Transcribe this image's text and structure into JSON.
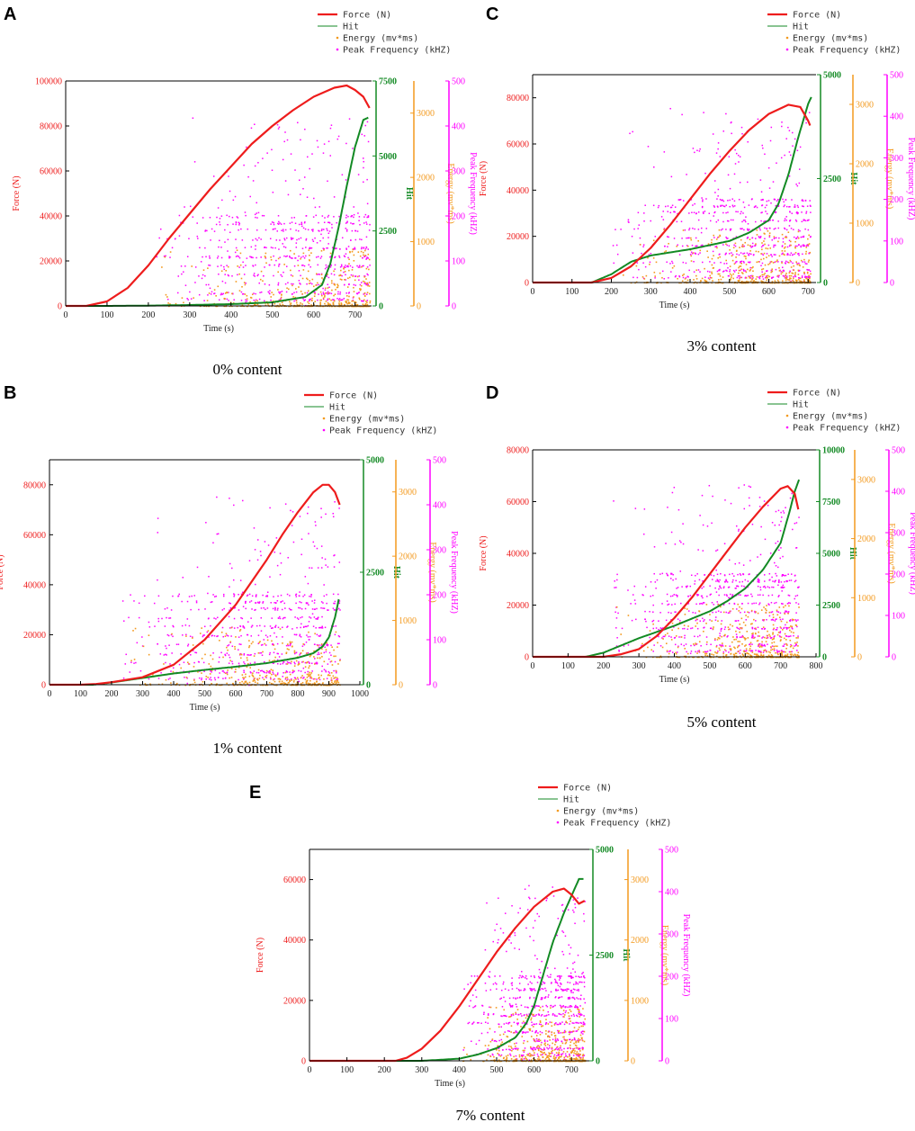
{
  "colors": {
    "force": "#ee1c1c",
    "hit": "#138a24",
    "energy": "#f39a1f",
    "peak": "#ff00ff",
    "axis": "#000000"
  },
  "legend_labels": {
    "force": "Force (N)",
    "hit": "Hit",
    "energy": "Energy (mv*ms)",
    "peak": "Peak Frequency (kHZ)"
  },
  "chart_data": [
    {
      "id": "A",
      "letter": "A",
      "caption": "0% content",
      "type": "line",
      "xlabel": "Time (s)",
      "xlim": [
        0,
        740
      ],
      "xticks": [
        0,
        100,
        200,
        300,
        400,
        500,
        600,
        700
      ],
      "force": {
        "label": "Force (N)",
        "ylim": [
          0,
          100000
        ],
        "ticks": [
          0,
          20000,
          40000,
          60000,
          80000,
          100000
        ],
        "x": [
          0,
          50,
          100,
          150,
          200,
          250,
          300,
          350,
          400,
          450,
          500,
          550,
          600,
          650,
          680,
          700,
          720,
          735
        ],
        "y": [
          0,
          0,
          2000,
          8000,
          18000,
          30000,
          41000,
          52000,
          62000,
          72000,
          80000,
          87000,
          93000,
          97000,
          98000,
          96000,
          93000,
          88000
        ]
      },
      "hit": {
        "label": "Hit",
        "ylim": [
          0,
          7500
        ],
        "ticks": [
          0,
          2500,
          5000,
          7500
        ],
        "x": [
          0,
          100,
          200,
          300,
          400,
          500,
          580,
          620,
          640,
          660,
          680,
          700,
          720,
          735
        ],
        "y": [
          0,
          0,
          10,
          30,
          60,
          120,
          300,
          700,
          1400,
          2600,
          4000,
          5300,
          6200,
          6300
        ]
      },
      "energy": {
        "label": "Energy (mv*ms)",
        "ylim": [
          0,
          3500
        ],
        "ticks": [
          0,
          1000,
          2000,
          3000
        ]
      },
      "peak": {
        "label": "Peak Frequency (kHZ)",
        "ylim": [
          0,
          500
        ],
        "ticks": [
          0,
          100,
          200,
          300,
          400,
          500
        ]
      }
    },
    {
      "id": "B",
      "letter": "B",
      "caption": "1% content",
      "type": "line",
      "xlabel": "Time (s)",
      "xlim": [
        0,
        1000
      ],
      "xticks": [
        0,
        100,
        200,
        300,
        400,
        500,
        600,
        700,
        800,
        900,
        1000
      ],
      "force": {
        "label": "Force (N)",
        "ylim": [
          0,
          90000
        ],
        "ticks": [
          0,
          20000,
          40000,
          60000,
          80000
        ],
        "x": [
          0,
          100,
          150,
          200,
          300,
          400,
          500,
          600,
          700,
          750,
          800,
          850,
          880,
          900,
          920,
          935
        ],
        "y": [
          0,
          0,
          300,
          1000,
          3000,
          8000,
          18000,
          32000,
          50000,
          60000,
          69000,
          77000,
          80000,
          80000,
          77000,
          72000
        ]
      },
      "hit": {
        "label": "Hit",
        "ylim": [
          0,
          5000
        ],
        "ticks": [
          0,
          2500,
          5000
        ],
        "x": [
          0,
          140,
          200,
          300,
          400,
          500,
          600,
          700,
          800,
          850,
          880,
          900,
          920,
          935
        ],
        "y": [
          0,
          0,
          50,
          150,
          250,
          330,
          400,
          480,
          600,
          700,
          850,
          1050,
          1500,
          2000
        ]
      },
      "energy": {
        "label": "Energy (mv*ms)",
        "ylim": [
          0,
          3500
        ],
        "ticks": [
          0,
          1000,
          2000,
          3000
        ]
      },
      "peak": {
        "label": "Peak Frequency (kHZ)",
        "ylim": [
          0,
          500
        ],
        "ticks": [
          0,
          100,
          200,
          300,
          400,
          500
        ]
      }
    },
    {
      "id": "C",
      "letter": "C",
      "caption": "3% content",
      "type": "line",
      "xlabel": "Time (s)",
      "xlim": [
        0,
        720
      ],
      "xticks": [
        0,
        100,
        200,
        300,
        400,
        500,
        600,
        700
      ],
      "force": {
        "label": "Force (N)",
        "ylim": [
          0,
          90000
        ],
        "ticks": [
          0,
          20000,
          40000,
          60000,
          80000
        ],
        "x": [
          0,
          150,
          200,
          250,
          300,
          350,
          400,
          450,
          500,
          550,
          600,
          650,
          680,
          700,
          705
        ],
        "y": [
          0,
          0,
          2000,
          7000,
          15000,
          25000,
          36000,
          47000,
          57000,
          66000,
          73000,
          77000,
          76000,
          70000,
          68000
        ]
      },
      "hit": {
        "label": "Hit",
        "ylim": [
          0,
          5000
        ],
        "ticks": [
          0,
          2500,
          5000
        ],
        "x": [
          0,
          150,
          200,
          250,
          300,
          400,
          500,
          550,
          600,
          625,
          650,
          675,
          700,
          710
        ],
        "y": [
          0,
          0,
          200,
          500,
          650,
          800,
          1000,
          1200,
          1500,
          1900,
          2600,
          3500,
          4300,
          4500
        ]
      },
      "energy": {
        "label": "Energy (mv*ms)",
        "ylim": [
          0,
          3500
        ],
        "ticks": [
          0,
          1000,
          2000,
          3000
        ]
      },
      "peak": {
        "label": "Peak Frequency (kHZ)",
        "ylim": [
          0,
          500
        ],
        "ticks": [
          0,
          100,
          200,
          300,
          400,
          500
        ]
      }
    },
    {
      "id": "D",
      "letter": "D",
      "caption": "5% content",
      "type": "line",
      "xlabel": "Time (s)",
      "xlim": [
        0,
        800
      ],
      "xticks": [
        0,
        100,
        200,
        300,
        400,
        500,
        600,
        700,
        800
      ],
      "force": {
        "label": "Force (N)",
        "ylim": [
          0,
          80000
        ],
        "ticks": [
          0,
          20000,
          40000,
          60000,
          80000
        ],
        "x": [
          0,
          200,
          250,
          300,
          350,
          400,
          450,
          500,
          550,
          600,
          650,
          700,
          720,
          740,
          750
        ],
        "y": [
          0,
          0,
          1000,
          3000,
          8000,
          15000,
          23000,
          32000,
          41000,
          50000,
          58000,
          65000,
          66000,
          63000,
          57000
        ]
      },
      "hit": {
        "label": "Hit",
        "ylim": [
          0,
          10000
        ],
        "ticks": [
          0,
          2500,
          5000,
          7500,
          10000
        ],
        "x": [
          0,
          150,
          200,
          300,
          400,
          500,
          550,
          600,
          650,
          700,
          725,
          740,
          755
        ],
        "y": [
          0,
          0,
          200,
          900,
          1500,
          2200,
          2700,
          3300,
          4200,
          5500,
          7000,
          8000,
          8700
        ]
      },
      "energy": {
        "label": "Energy (mv*ms)",
        "ylim": [
          0,
          3500
        ],
        "ticks": [
          0,
          1000,
          2000,
          3000
        ]
      },
      "peak": {
        "label": "Peak Frequency (kHZ)",
        "ylim": [
          0,
          500
        ],
        "ticks": [
          0,
          100,
          200,
          300,
          400,
          500
        ]
      }
    },
    {
      "id": "E",
      "letter": "E",
      "caption": "7% content",
      "type": "line",
      "xlabel": "Time (s)",
      "xlim": [
        0,
        750
      ],
      "xticks": [
        0,
        100,
        200,
        300,
        400,
        500,
        600,
        700
      ],
      "force": {
        "label": "Force (N)",
        "ylim": [
          0,
          70000
        ],
        "ticks": [
          0,
          20000,
          40000,
          60000
        ],
        "x": [
          0,
          230,
          260,
          300,
          350,
          400,
          450,
          500,
          550,
          600,
          650,
          680,
          700,
          720,
          735
        ],
        "y": [
          0,
          0,
          1000,
          4000,
          10000,
          18000,
          27000,
          36000,
          44000,
          51000,
          56000,
          57000,
          55000,
          52000,
          53000
        ]
      },
      "hit": {
        "label": "Hit",
        "ylim": [
          0,
          5000
        ],
        "ticks": [
          0,
          2500,
          5000
        ],
        "x": [
          0,
          300,
          400,
          450,
          500,
          550,
          580,
          600,
          620,
          650,
          680,
          700,
          720,
          735
        ],
        "y": [
          0,
          0,
          50,
          150,
          300,
          550,
          900,
          1300,
          1900,
          2800,
          3500,
          3900,
          4300,
          4300
        ]
      },
      "energy": {
        "label": "Energy (mv*ms)",
        "ylim": [
          0,
          3500
        ],
        "ticks": [
          0,
          1000,
          2000,
          3000
        ]
      },
      "peak": {
        "label": "Peak Frequency (kHZ)",
        "ylim": [
          0,
          500
        ],
        "ticks": [
          0,
          100,
          200,
          300,
          400,
          500
        ]
      }
    }
  ]
}
